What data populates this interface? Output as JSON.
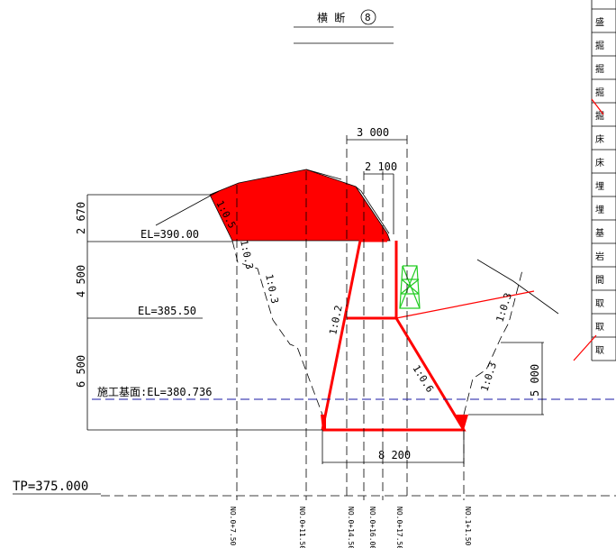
{
  "title": {
    "text": "横 断",
    "number": "8"
  },
  "dimensions": {
    "top_width_outer": "3 000",
    "top_width_inner": "2 100",
    "bottom_width": "8 200",
    "height_1": "2 670",
    "height_2": "4 500",
    "height_3": "6 500",
    "right_height": "5 000"
  },
  "elevations": {
    "el_1": "EL=390.00",
    "el_2": "EL=385.50",
    "base": "施工基面:EL=380.736",
    "tp": "TP=375.000"
  },
  "slopes": {
    "s1": "1:0.5",
    "s2": "1:0.3",
    "s3": "1:0.3",
    "s4": "1:0.2",
    "s5": "1:0.6",
    "s6": "1:0.3",
    "s7": "1:0.3"
  },
  "stations": [
    "NO.0+7.50",
    "NO.0+11.50",
    "NO.0+14.50",
    "NO.0+16.00",
    "NO.0+17.50",
    "NO.1+1.50"
  ],
  "table_chars": [
    "盛",
    "掘",
    "掘",
    "掘",
    "掘",
    "床",
    "床",
    "埋",
    "埋",
    "基",
    "岩",
    "間",
    "取",
    "取",
    "取"
  ],
  "colors": {
    "excavation": "#ff0000",
    "structure": "#22cc22",
    "base_line": "#1a1aa6"
  }
}
